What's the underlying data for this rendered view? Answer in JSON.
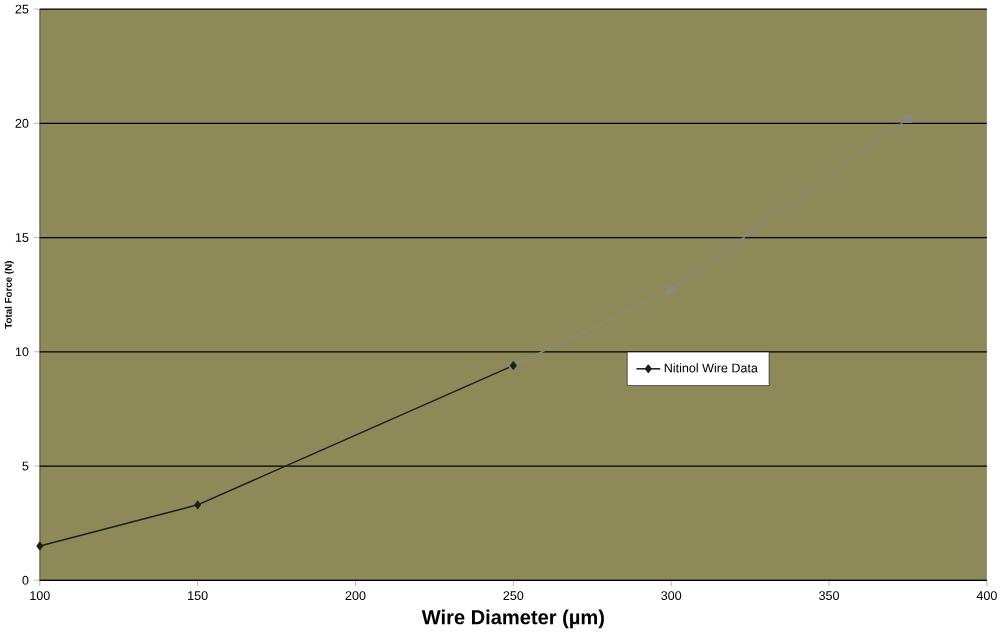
{
  "chart_data": {
    "type": "line",
    "xlabel": "Wire Diameter (µm)",
    "ylabel": "Total Force (N)",
    "series": [
      {
        "name": "Nitinol Wire Data",
        "color": "#1e1e1a",
        "marker": "diamond",
        "x": [
          100,
          150,
          250
        ],
        "values": [
          1.5,
          3.3,
          9.4
        ]
      },
      {
        "color": "#8a8a7c",
        "marker": "square",
        "x": [
          250,
          300,
          375
        ],
        "values": [
          9.4,
          12.7,
          20.2
        ]
      }
    ],
    "xlim": [
      100,
      400
    ],
    "xticks": [
      100,
      150,
      200,
      250,
      300,
      350,
      400
    ],
    "ylim": [
      0,
      25
    ],
    "yticks": [
      0,
      5,
      10,
      15,
      20,
      25
    ],
    "grid": "y",
    "legend": "right"
  }
}
